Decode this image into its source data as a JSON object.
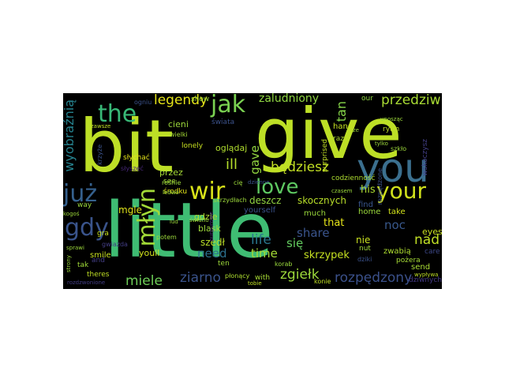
{
  "words": [
    {
      "text": "little",
      "color": "#3fbc73"
    },
    {
      "text": "give",
      "color": "#bddf26"
    },
    {
      "text": "bit",
      "color": "#bddf26"
    },
    {
      "text": "you",
      "color": "#3b6f8e"
    },
    {
      "text": "your",
      "color": "#d0e11c"
    },
    {
      "text": "the",
      "color": "#38b977"
    },
    {
      "text": "jak",
      "color": "#7ad151"
    },
    {
      "text": "love",
      "color": "#5ec962"
    },
    {
      "text": "już",
      "color": "#35608d"
    },
    {
      "text": "wir",
      "color": "#d8e219"
    },
    {
      "text": "gdy",
      "color": "#3a548c"
    },
    {
      "text": "młyn",
      "color": "#a2da37"
    },
    {
      "text": "legendy",
      "color": "#e5e419"
    },
    {
      "text": "przedziwny",
      "color": "#a8db34"
    },
    {
      "text": "rozpędzony",
      "color": "#3b518b"
    },
    {
      "text": "ziarno",
      "color": "#3a538b"
    },
    {
      "text": "miele",
      "color": "#6ece58"
    },
    {
      "text": "zgiełk",
      "color": "#9dd93b"
    },
    {
      "text": "będziesz",
      "color": "#c2df23"
    },
    {
      "text": "nad",
      "color": "#c0df25"
    },
    {
      "text": "się",
      "color": "#63cb5f"
    },
    {
      "text": "time",
      "color": "#a5db36"
    },
    {
      "text": "life",
      "color": "#2a768e"
    },
    {
      "text": "share",
      "color": "#3a548c"
    },
    {
      "text": "need",
      "color": "#2c718e"
    },
    {
      "text": "noc",
      "color": "#38588c"
    },
    {
      "text": "zaludniony",
      "color": "#90d743"
    },
    {
      "text": "wyobraźnią",
      "color": "#26828e"
    },
    {
      "text": "ill",
      "color": "#b5de2b"
    },
    {
      "text": "gave",
      "color": "#93d741"
    },
    {
      "text": "tan",
      "color": "#86d549"
    },
    {
      "text": "skrzypek",
      "color": "#c5e021"
    },
    {
      "text": "skocznych",
      "color": "#b8de29"
    },
    {
      "text": "deszcz",
      "color": "#93d741"
    },
    {
      "text": "that",
      "color": "#e5e419"
    },
    {
      "text": "his",
      "color": "#addc30"
    },
    {
      "text": "nie",
      "color": "#c8e020"
    },
    {
      "text": "home",
      "color": "#9bd93c"
    },
    {
      "text": "eyes",
      "color": "#c8e020"
    },
    {
      "text": "take",
      "color": "#d2e21b"
    },
    {
      "text": "find",
      "color": "#39558c"
    },
    {
      "text": "zwabią",
      "color": "#addc30"
    },
    {
      "text": "szedł",
      "color": "#bade28"
    },
    {
      "text": "youll",
      "color": "#d2e21b"
    },
    {
      "text": "smile",
      "color": "#c8e020"
    },
    {
      "text": "gdzie",
      "color": "#b0dd2f"
    },
    {
      "text": "blask",
      "color": "#9fda3a"
    },
    {
      "text": "yourself",
      "color": "#3b528b"
    },
    {
      "text": "much",
      "color": "#9bd93c"
    },
    {
      "text": "przez",
      "color": "#a5db36"
    },
    {
      "text": "oglądaj",
      "color": "#b0dd2f"
    },
    {
      "text": "cieni",
      "color": "#9dd93b"
    },
    {
      "text": "mgle",
      "color": "#dfe318"
    },
    {
      "text": "środku",
      "color": "#e2e418"
    },
    {
      "text": "see",
      "color": "#a5db36"
    },
    {
      "text": "raz",
      "color": "#addc30"
    },
    {
      "text": "hand",
      "color": "#c5e021"
    },
    {
      "text": "our",
      "color": "#90d743"
    },
    {
      "text": "way",
      "color": "#9bd93c"
    },
    {
      "text": "gra",
      "color": "#c8e020"
    },
    {
      "text": "tak",
      "color": "#a0da39"
    },
    {
      "text": "and",
      "color": "#433e85"
    },
    {
      "text": "theres",
      "color": "#c0df25"
    },
    {
      "text": "ten",
      "color": "#9dd93b"
    },
    {
      "text": "płonący",
      "color": "#addc30"
    },
    {
      "text": "with",
      "color": "#a8db34"
    },
    {
      "text": "konie",
      "color": "#c0df25"
    },
    {
      "text": "send",
      "color": "#a8db34"
    },
    {
      "text": "dziwnych",
      "color": "#443983"
    },
    {
      "text": "pożera",
      "color": "#a5db36"
    },
    {
      "text": "care",
      "color": "#3e4989"
    },
    {
      "text": "potem",
      "color": "#9bd93c"
    },
    {
      "text": "rośnie",
      "color": "#9bd93c"
    },
    {
      "text": "ledwo",
      "color": "#9dd93b"
    },
    {
      "text": "słychać",
      "color": "#e5e419"
    },
    {
      "text": "słyszeć",
      "color": "#482878"
    },
    {
      "text": "lonely",
      "color": "#c8e020"
    },
    {
      "text": "świata",
      "color": "#3b528b"
    },
    {
      "text": "show",
      "color": "#9bd93c"
    },
    {
      "text": "gwiazda",
      "color": "#433e85"
    },
    {
      "text": "codzienność",
      "color": "#addc30"
    },
    {
      "text": "rozpędzone",
      "color": "#3b528b"
    },
    {
      "text": "skrzydłach",
      "color": "#9dd93b"
    },
    {
      "text": "wielki",
      "color": "#a5db36"
    },
    {
      "text": "rytm",
      "color": "#c0df25"
    },
    {
      "text": "wskoczysz",
      "color": "#423f85"
    },
    {
      "text": "surprised",
      "color": "#c0df25"
    },
    {
      "text": "dziki",
      "color": "#3b528b"
    },
    {
      "text": "nut",
      "color": "#a0da39"
    },
    {
      "text": "korab",
      "color": "#9bd93c"
    },
    {
      "text": "cię",
      "color": "#9dd93b"
    },
    {
      "text": "dzienne",
      "color": "#3b528b"
    },
    {
      "text": "tobie",
      "color": "#c0df25"
    },
    {
      "text": "czasem",
      "color": "#9bd93c"
    },
    {
      "text": "wypływa",
      "color": "#c0df25"
    },
    {
      "text": "unosząc",
      "color": "#9dd93b"
    },
    {
      "text": "kogoś",
      "color": "#9dd93b"
    },
    {
      "text": "sprawi",
      "color": "#9dd93b"
    },
    {
      "text": "strony",
      "color": "#9dd93b"
    },
    {
      "text": "rozdzwonione",
      "color": "#433e85"
    },
    {
      "text": "zawsze",
      "color": "#c0df25"
    },
    {
      "text": "krzyże",
      "color": "#3b528b"
    },
    {
      "text": "ogniu",
      "color": "#3b528b"
    },
    {
      "text": "tylko",
      "color": "#9dd93b"
    },
    {
      "text": "szkło",
      "color": "#9dd93b"
    },
    {
      "text": "ze",
      "color": "#9dd93b"
    },
    {
      "text": "purpurowe",
      "color": "#472d7b"
    },
    {
      "text": "lud",
      "color": "#9dd93b"
    },
    {
      "text": "światło",
      "color": "#9dd93b"
    }
  ]
}
